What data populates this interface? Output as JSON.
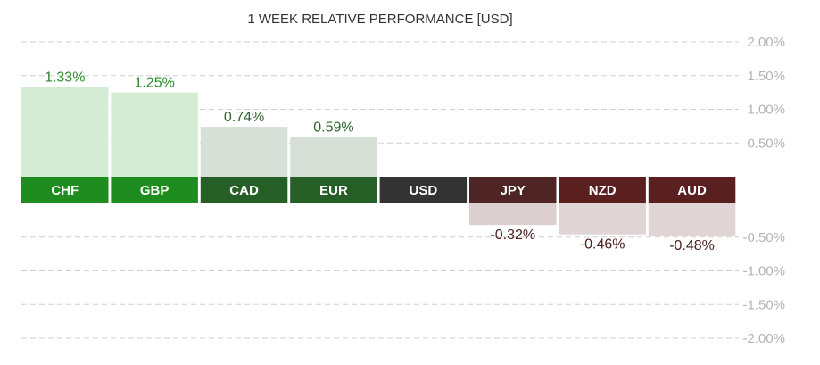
{
  "chart_data": {
    "type": "bar",
    "title": "1 WEEK RELATIVE PERFORMANCE  [USD]",
    "categories": [
      "CHF",
      "GBP",
      "CAD",
      "EUR",
      "USD",
      "JPY",
      "NZD",
      "AUD"
    ],
    "values": [
      1.33,
      1.25,
      0.74,
      0.59,
      0,
      -0.32,
      -0.46,
      -0.48
    ],
    "value_labels": [
      "1.33%",
      "1.25%",
      "0.74%",
      "0.59%",
      "",
      "-0.32%",
      "-0.46%",
      "-0.48%"
    ],
    "yticks_pos": [
      "2.00%",
      "1.50%",
      "1.00%",
      "0.50%"
    ],
    "yticks_neg": [
      "-0.50%",
      "-1.00%",
      "-1.50%",
      "-2.00%"
    ],
    "ylim": [
      -2,
      2
    ],
    "grid": true,
    "legend": "none",
    "colors": {
      "label_bg": [
        "#1e8c1e",
        "#1e8c1e",
        "#265f26",
        "#265f26",
        "#333333",
        "#4e2424",
        "#5a2020",
        "#5a2020"
      ],
      "bar_fill": [
        "#d3ecd3",
        "#d3ecd3",
        "#d6e0d6",
        "#d6e0d6",
        "#ffffff",
        "#dccfcf",
        "#e0d4d4",
        "#e0d4d4"
      ],
      "value_text": [
        "#2a8a2a",
        "#2a8a2a",
        "#2e642e",
        "#2e642e",
        "#333333",
        "#4a2020",
        "#4a2020",
        "#4a2020"
      ],
      "grid": "#d0d0d0"
    }
  }
}
